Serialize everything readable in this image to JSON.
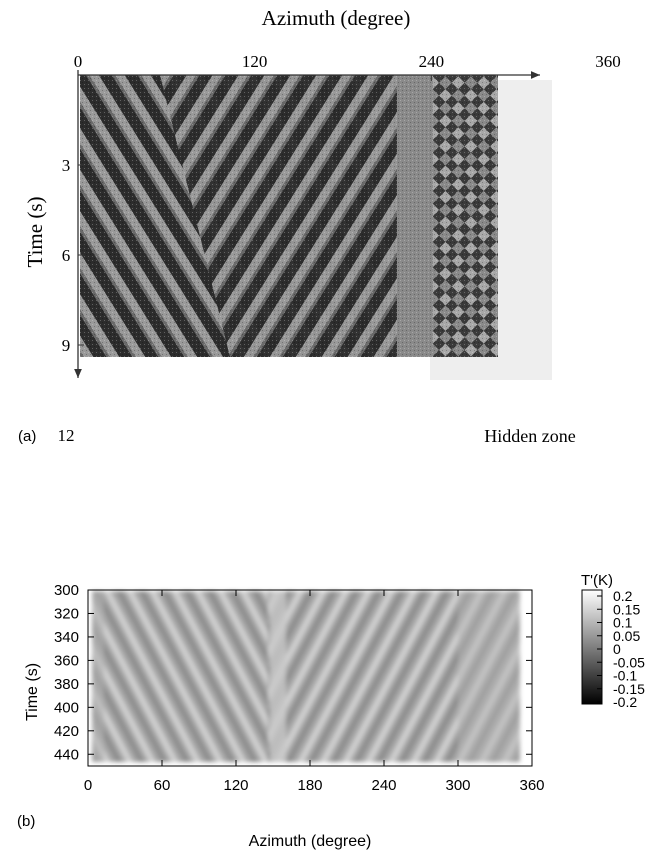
{
  "panel_a": {
    "label": "(a)",
    "hidden_zone_label": "Hidden zone"
  },
  "panel_b": {
    "label": "(b)"
  },
  "chart_data": [
    {
      "type": "heatmap",
      "title": "",
      "xlabel": "Azimuth (degree)",
      "ylabel": "Time (s)",
      "x_ticks": [
        0,
        120,
        240,
        360
      ],
      "y_ticks": [
        3,
        6,
        9,
        12
      ],
      "xlim": [
        0,
        360
      ],
      "ylim": [
        0,
        12
      ],
      "x_axis_position": "top",
      "y_axis_inverted": true,
      "colormap": "grayscale",
      "annotations": [
        "Hidden zone"
      ]
    },
    {
      "type": "heatmap",
      "title": "",
      "xlabel": "Azimuth (degree)",
      "ylabel": "Time (s)",
      "x_ticks": [
        0,
        60,
        120,
        180,
        240,
        300,
        360
      ],
      "y_ticks": [
        300,
        320,
        340,
        360,
        380,
        400,
        420,
        440
      ],
      "xlim": [
        0,
        360
      ],
      "ylim": [
        300,
        450
      ],
      "y_axis_inverted": true,
      "colorbar": {
        "label": "T'(K)",
        "range": [
          -0.2,
          0.2
        ],
        "ticks": [
          "0.2",
          "0.15",
          "0.1",
          "0.05",
          "0",
          "-0.05",
          "-0.1",
          "-0.15",
          "-0.2"
        ],
        "placement": "right"
      },
      "colormap": "grayscale"
    }
  ]
}
